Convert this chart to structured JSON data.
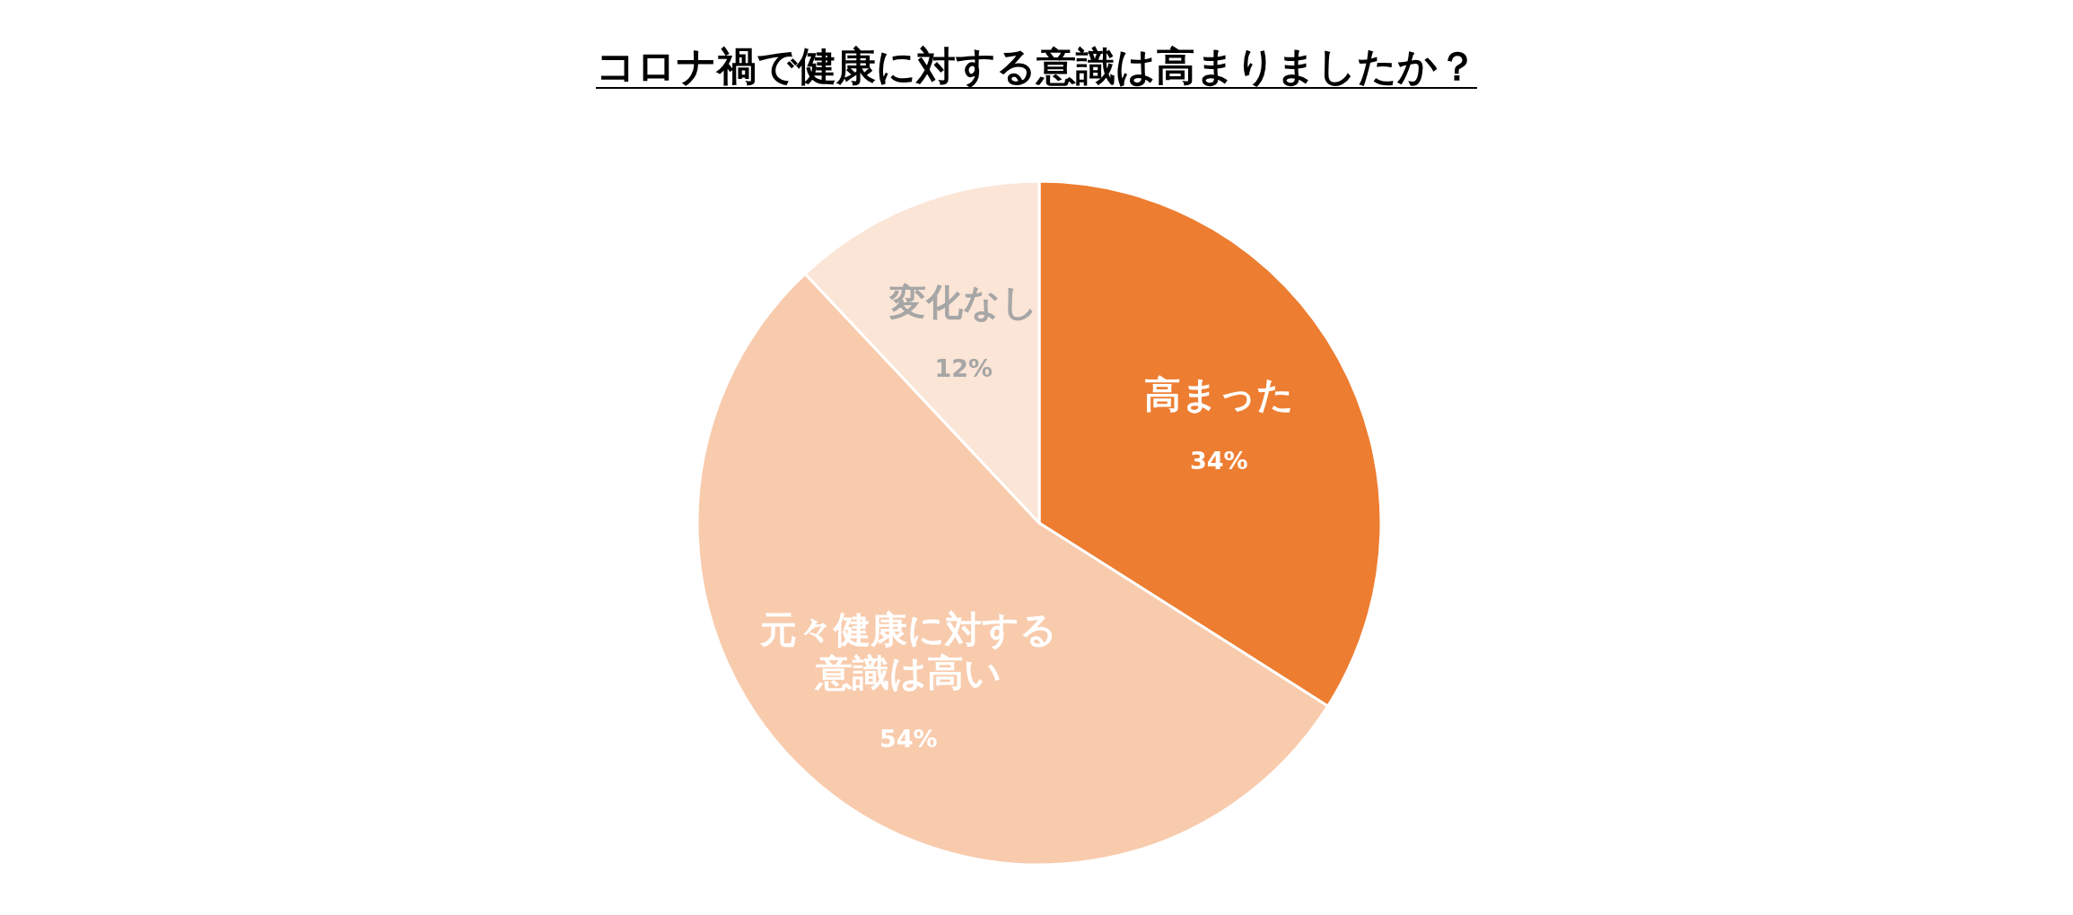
{
  "chart_data": {
    "type": "pie",
    "title": "コロナ禍で健康に対する意識は高まりましたか？",
    "categories": [
      "高まった",
      "元々健康に対する意識は高い",
      "変化なし"
    ],
    "values": [
      34,
      54,
      12
    ],
    "value_labels": [
      "34%",
      "54%",
      "12%"
    ],
    "colors": [
      "#ed7d31",
      "#f8cbad",
      "#fbe5d6"
    ]
  }
}
